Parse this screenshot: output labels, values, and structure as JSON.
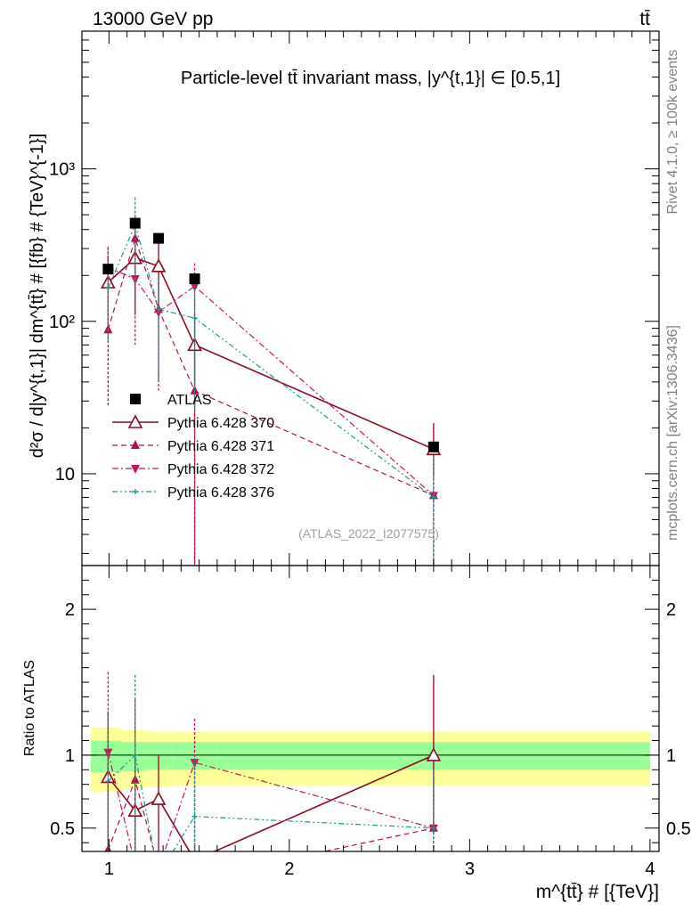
{
  "header": {
    "left": "13000 GeV pp",
    "right": "tt̄"
  },
  "side_labels": {
    "rivet": "Rivet 4.1.0, ≥ 100k events",
    "mcplots": "mcplots.cern.ch [arXiv:1306.3436]"
  },
  "chart_data": [
    {
      "type": "scatter",
      "panel": "main",
      "title": "Particle-level tt̄ invariant mass, |y^{t,1}| ∈ [0.5,1]",
      "ylabel": "d²σ / d|y^{t,1}| dm^{tt̄} # [{fb} # {TeV}^{-1}]",
      "yscale": "log",
      "ylim": [
        2.5,
        8000
      ],
      "xlim": [
        0.85,
        4.05
      ],
      "yticks": [
        {
          "value": 10,
          "label": "10"
        },
        {
          "value": 100,
          "label": "10²"
        },
        {
          "value": 1000,
          "label": "10³"
        }
      ],
      "watermark": "(ATLAS_2022_I2077575)",
      "x": [
        0.995,
        1.145,
        1.275,
        1.475,
        2.8
      ],
      "series": [
        {
          "name": "ATLAS",
          "color": "#000000",
          "marker": "square",
          "line": "none",
          "values": [
            220,
            440,
            350,
            190,
            15
          ]
        },
        {
          "name": "Pythia 6.428 370",
          "color": "#8b0a1e",
          "marker": "triangle-up-open",
          "line": "solid",
          "values": [
            180,
            260,
            230,
            70,
            14.5
          ],
          "err_low": [
            90,
            150,
            110,
            30,
            5
          ],
          "err_high": [
            90,
            150,
            110,
            30,
            7
          ]
        },
        {
          "name": "Pythia 6.428 371",
          "color": "#b0104e",
          "marker": "triangle-up",
          "line": "dashed",
          "values": [
            88,
            350,
            120,
            35,
            7.2
          ],
          "err_low": [
            60,
            200,
            80,
            33,
            6
          ],
          "err_high": [
            220,
            150,
            80,
            25,
            6
          ]
        },
        {
          "name": "Pythia 6.428 372",
          "color": "#c2185b",
          "marker": "triangle-down",
          "line": "dashdot",
          "values": [
            225,
            190,
            115,
            170,
            7.2
          ],
          "err_low": [
            120,
            120,
            80,
            168,
            6
          ],
          "err_high": [
            80,
            150,
            80,
            70,
            6
          ]
        },
        {
          "name": "Pythia 6.428 376",
          "color": "#159b8c",
          "marker": "star",
          "line": "dashdotdot",
          "values": [
            165,
            430,
            120,
            105,
            7
          ],
          "err_low": [
            90,
            250,
            80,
            80,
            6
          ],
          "err_high": [
            80,
            220,
            80,
            60,
            6
          ]
        }
      ]
    },
    {
      "type": "line",
      "panel": "ratio",
      "ylabel": "Ratio to ATLAS",
      "xlabel": "m^{tt̄} # [{TeV}]",
      "ylim": [
        0.34,
        2.3
      ],
      "xlim": [
        0.85,
        4.05
      ],
      "xticks": [
        {
          "value": 1,
          "label": "1"
        },
        {
          "value": 2,
          "label": "2"
        },
        {
          "value": 3,
          "label": "3"
        },
        {
          "value": 4,
          "label": "4"
        }
      ],
      "yticks": [
        {
          "value": 0.5,
          "label": "0.5"
        },
        {
          "value": 1,
          "label": "1"
        },
        {
          "value": 2,
          "label": "2"
        }
      ],
      "reference": 1,
      "bands": {
        "edges": [
          0.9,
          1.07,
          1.2,
          1.35,
          1.6,
          4.0
        ],
        "yellow_low": [
          0.75,
          0.77,
          0.78,
          0.79,
          0.79
        ],
        "yellow_high": [
          1.19,
          1.17,
          1.16,
          1.16,
          1.16
        ],
        "green_low": [
          0.88,
          0.89,
          0.9,
          0.9,
          0.9
        ],
        "green_high": [
          1.1,
          1.09,
          1.09,
          1.09,
          1.09
        ],
        "yellow_color": "#ffff99",
        "green_color": "#99ff99"
      },
      "x": [
        0.995,
        1.145,
        1.275,
        1.475,
        2.8
      ],
      "series": [
        {
          "name": "Pythia 6.428 370",
          "color": "#8b0a1e",
          "marker": "triangle-up-open",
          "line": "solid",
          "values": [
            0.85,
            0.62,
            0.7,
            0.28,
            1.0
          ],
          "err_low": [
            0.6,
            0.35,
            0.55,
            0.1,
            0.5
          ],
          "err_high": [
            0.45,
            0.35,
            0.3,
            0.1,
            0.55
          ]
        },
        {
          "name": "Pythia 6.428 371",
          "color": "#b0104e",
          "marker": "triangle-up",
          "line": "dashed",
          "values": [
            0.35,
            0.83,
            0.22,
            0.15,
            0.5
          ],
          "err_low": [
            0.1,
            0.6,
            0.1,
            0.05,
            0.2
          ],
          "err_high": [
            0.8,
            0.55,
            0.1,
            0.05,
            0.4
          ]
        },
        {
          "name": "Pythia 6.428 372",
          "color": "#c2185b",
          "marker": "triangle-down",
          "line": "dashdot",
          "values": [
            1.02,
            0.25,
            0.22,
            0.95,
            0.5
          ],
          "err_low": [
            0.7,
            0.1,
            0.1,
            0.9,
            0.2
          ],
          "err_high": [
            0.55,
            0.1,
            0.1,
            0.3,
            0.4
          ]
        },
        {
          "name": "Pythia 6.428 376",
          "color": "#159b8c",
          "marker": "star",
          "line": "dashdotdot",
          "values": [
            0.82,
            1.0,
            0.18,
            0.58,
            0.5
          ],
          "err_low": [
            0.5,
            0.8,
            0.1,
            0.4,
            0.2
          ],
          "err_high": [
            0.45,
            0.55,
            0.1,
            0.4,
            0.4
          ]
        }
      ]
    }
  ]
}
